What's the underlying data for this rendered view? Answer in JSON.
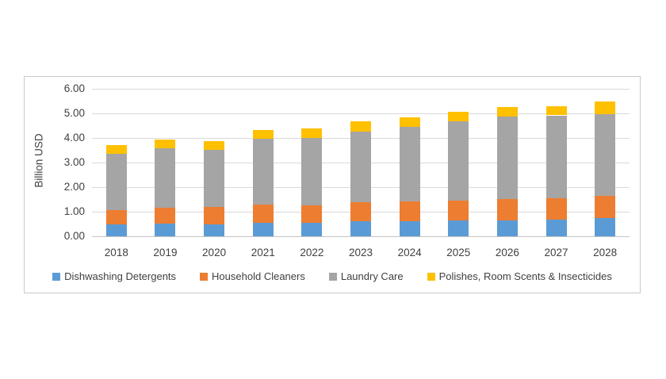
{
  "chart_data": {
    "type": "bar",
    "stacked": true,
    "title": "",
    "ylabel": "Billion USD",
    "xlabel": "",
    "ylim": [
      0,
      6
    ],
    "y_tick_step": 1,
    "y_tick_labels": [
      "0.00",
      "1.00",
      "2.00",
      "3.00",
      "4.00",
      "5.00",
      "6.00"
    ],
    "grid": true,
    "legend_position": "bottom",
    "categories": [
      "2018",
      "2019",
      "2020",
      "2021",
      "2022",
      "2023",
      "2024",
      "2025",
      "2026",
      "2027",
      "2028"
    ],
    "series": [
      {
        "name": "Dishwashing Detergents",
        "color": "#5B9BD5",
        "values": [
          0.5,
          0.53,
          0.5,
          0.56,
          0.54,
          0.61,
          0.61,
          0.65,
          0.65,
          0.67,
          0.75
        ]
      },
      {
        "name": "Household Cleaners",
        "color": "#ED7D31",
        "values": [
          0.58,
          0.62,
          0.68,
          0.73,
          0.72,
          0.77,
          0.81,
          0.79,
          0.86,
          0.87,
          0.88
        ]
      },
      {
        "name": "Laundry Care",
        "color": "#A5A5A5",
        "values": [
          2.27,
          2.43,
          2.34,
          2.67,
          2.73,
          2.87,
          3.04,
          3.23,
          3.35,
          3.38,
          3.35
        ]
      },
      {
        "name": "Polishes, Room Scents & Insecticides",
        "color": "#FFC000",
        "values": [
          0.37,
          0.37,
          0.35,
          0.36,
          0.39,
          0.42,
          0.39,
          0.38,
          0.39,
          0.38,
          0.5
        ]
      }
    ],
    "totals": [
      3.72,
      3.95,
      3.87,
      4.32,
      4.38,
      4.67,
      4.85,
      5.05,
      5.25,
      5.3,
      5.48
    ]
  },
  "frame": {
    "background_color": "#FFFFFF",
    "border_color": "#C9C9C9",
    "gridline_color": "#D9D9D9",
    "text_color": "#404040"
  }
}
